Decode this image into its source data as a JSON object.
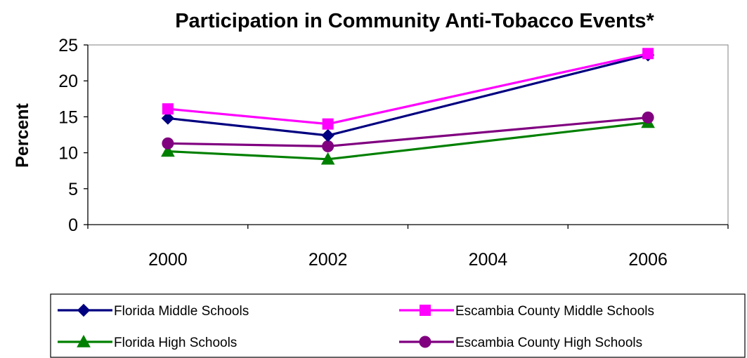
{
  "chart_data": {
    "type": "line",
    "title": "Participation in Community Anti-Tobacco Events*",
    "xlabel": "",
    "ylabel": "Percent",
    "x": [
      2000,
      2002,
      2004,
      2006
    ],
    "x_tick_labels": [
      "2000",
      "2002",
      "2004",
      "2006"
    ],
    "ylim": [
      0,
      25
    ],
    "y_ticks": [
      0,
      5,
      10,
      15,
      20,
      25
    ],
    "grid": false,
    "legend_position": "bottom",
    "series": [
      {
        "name": "Florida Middle Schools",
        "color": "#000080",
        "marker": "diamond",
        "points": [
          [
            2000,
            14.8
          ],
          [
            2002,
            12.4
          ],
          [
            2006,
            23.6
          ]
        ]
      },
      {
        "name": "Escambia County Middle Schools",
        "color": "#FF00FF",
        "marker": "square",
        "points": [
          [
            2000,
            16.1
          ],
          [
            2002,
            14.0
          ],
          [
            2006,
            23.8
          ]
        ]
      },
      {
        "name": "Florida High Schools",
        "color": "#008000",
        "marker": "triangle",
        "points": [
          [
            2000,
            10.2
          ],
          [
            2002,
            9.1
          ],
          [
            2006,
            14.2
          ]
        ]
      },
      {
        "name": "Escambia County High Schools",
        "color": "#800080",
        "marker": "circle",
        "points": [
          [
            2000,
            11.3
          ],
          [
            2002,
            10.9
          ],
          [
            2006,
            14.9
          ]
        ]
      }
    ]
  }
}
